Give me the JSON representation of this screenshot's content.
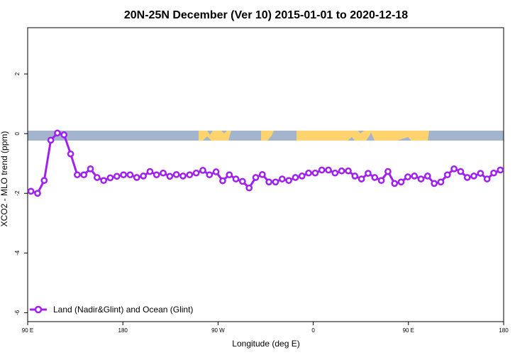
{
  "chart_data": {
    "type": "line",
    "title": "20N-25N December (Ver 10)   2015-01-01 to 2020-12-18",
    "xlabel": "Longitude (deg E)",
    "ylabel": "XCO2 - MLO trend (ppm)",
    "xlim": [
      90,
      450
    ],
    "ylim": [
      -6.3,
      3.55
    ],
    "x_ticks": [
      {
        "value": 90,
        "label": "90 E"
      },
      {
        "value": 162,
        "label": "180"
      },
      {
        "value": 234,
        "label": "90 W"
      },
      {
        "value": 306,
        "label": "0"
      },
      {
        "value": 378,
        "label": "90 E"
      },
      {
        "value": 450,
        "label": "180"
      }
    ],
    "y_ticks": [
      {
        "value": 2,
        "label": "2"
      },
      {
        "value": 0,
        "label": "0"
      },
      {
        "value": -2,
        "label": "-2"
      },
      {
        "value": -4,
        "label": "-4"
      },
      {
        "value": -6,
        "label": "-6"
      }
    ],
    "legend_position": "bottom-left",
    "colors": {
      "series": "#a020f0",
      "ocean": "#a2b5cd",
      "land": "#ffd36e"
    },
    "series": [
      {
        "name": "Land (Nadir&Glint) and Ocean (Glint)",
        "x": [
          92.5,
          97.5,
          102.5,
          107.5,
          112.5,
          117.5,
          122.5,
          127.5,
          132.5,
          137.5,
          142.5,
          147.5,
          152.5,
          157.5,
          162.5,
          167.5,
          172.5,
          177.5,
          182.5,
          187.5,
          192.5,
          197.5,
          202.5,
          207.5,
          212.5,
          217.5,
          222.5,
          227.5,
          232.5,
          237.5,
          242.5,
          247.5,
          252.5,
          257.5,
          262.5,
          267.5,
          272.5,
          277.5,
          282.5,
          287.5,
          292.5,
          297.5,
          302.5,
          307.5,
          312.5,
          317.5,
          322.5,
          327.5,
          332.5,
          337.5,
          342.5,
          347.5,
          352.5,
          357.5,
          362.5,
          367.5,
          372.5,
          377.5,
          382.5,
          387.5,
          392.5,
          397.5,
          402.5,
          407.5,
          412.5,
          417.5,
          422.5,
          427.5,
          432.5,
          437.5,
          442.5,
          447.5
        ],
        "y": [
          -1.93,
          -2.0,
          -1.57,
          -0.22,
          0.02,
          -0.04,
          -0.68,
          -1.38,
          -1.38,
          -1.18,
          -1.47,
          -1.57,
          -1.48,
          -1.43,
          -1.38,
          -1.38,
          -1.47,
          -1.42,
          -1.27,
          -1.38,
          -1.32,
          -1.43,
          -1.37,
          -1.42,
          -1.38,
          -1.32,
          -1.23,
          -1.38,
          -1.28,
          -1.58,
          -1.38,
          -1.52,
          -1.6,
          -1.82,
          -1.47,
          -1.37,
          -1.62,
          -1.62,
          -1.52,
          -1.57,
          -1.47,
          -1.42,
          -1.32,
          -1.32,
          -1.22,
          -1.22,
          -1.32,
          -1.25,
          -1.25,
          -1.42,
          -1.52,
          -1.33,
          -1.47,
          -1.57,
          -1.27,
          -1.67,
          -1.62,
          -1.45,
          -1.42,
          -1.52,
          -1.42,
          -1.67,
          -1.62,
          -1.38,
          -1.18,
          -1.27,
          -1.47,
          -1.42,
          -1.33,
          -1.52,
          -1.32,
          -1.22
        ]
      }
    ]
  }
}
